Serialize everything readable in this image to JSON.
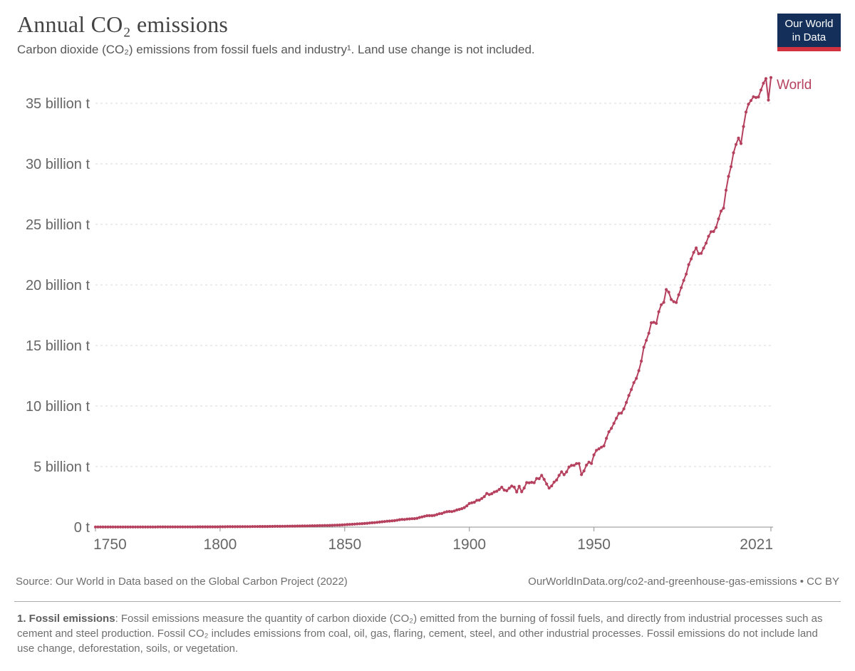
{
  "header": {
    "title": "Annual CO₂ emissions",
    "subtitle": "Carbon dioxide (CO₂) emissions from fossil fuels and industry¹. Land use change is not included."
  },
  "logo": {
    "line1": "Our World",
    "line2": "in Data"
  },
  "colors": {
    "line": "#b5415e",
    "grid": "#d9d9d9",
    "axis": "#8f8f8f",
    "tick_label": "#666666",
    "logo_navy": "#14305a",
    "logo_red": "#d0333f"
  },
  "chart_data": {
    "type": "line",
    "title": "Annual CO₂ emissions",
    "xlabel": "",
    "ylabel": "",
    "unit": "billion t",
    "xlim": [
      1750,
      2021
    ],
    "ylim": [
      0,
      37.5
    ],
    "x_ticks": [
      1750,
      1800,
      1850,
      1900,
      1950,
      2021
    ],
    "y_ticks": [
      0,
      5,
      10,
      15,
      20,
      25,
      30,
      35
    ],
    "y_tick_labels": [
      "0 t",
      "5 billion t",
      "10 billion t",
      "15 billion t",
      "20 billion t",
      "25 billion t",
      "30 billion t",
      "35 billion t"
    ],
    "grid": "horizontal-dashed",
    "legend_position": "end-of-line",
    "series": [
      {
        "name": "World",
        "color": "#b5415e",
        "data": [
          [
            1750,
            0.009
          ],
          [
            1751,
            0.009
          ],
          [
            1752,
            0.009
          ],
          [
            1753,
            0.01
          ],
          [
            1754,
            0.01
          ],
          [
            1755,
            0.01
          ],
          [
            1756,
            0.01
          ],
          [
            1757,
            0.01
          ],
          [
            1758,
            0.01
          ],
          [
            1759,
            0.011
          ],
          [
            1760,
            0.011
          ],
          [
            1761,
            0.011
          ],
          [
            1762,
            0.011
          ],
          [
            1763,
            0.012
          ],
          [
            1764,
            0.012
          ],
          [
            1765,
            0.012
          ],
          [
            1766,
            0.012
          ],
          [
            1767,
            0.013
          ],
          [
            1768,
            0.013
          ],
          [
            1769,
            0.013
          ],
          [
            1770,
            0.013
          ],
          [
            1771,
            0.014
          ],
          [
            1772,
            0.014
          ],
          [
            1773,
            0.014
          ],
          [
            1774,
            0.014
          ],
          [
            1775,
            0.015
          ],
          [
            1776,
            0.015
          ],
          [
            1777,
            0.015
          ],
          [
            1778,
            0.016
          ],
          [
            1779,
            0.016
          ],
          [
            1780,
            0.016
          ],
          [
            1781,
            0.017
          ],
          [
            1782,
            0.017
          ],
          [
            1783,
            0.017
          ],
          [
            1784,
            0.018
          ],
          [
            1785,
            0.018
          ],
          [
            1786,
            0.018
          ],
          [
            1787,
            0.019
          ],
          [
            1788,
            0.019
          ],
          [
            1789,
            0.02
          ],
          [
            1790,
            0.02
          ],
          [
            1791,
            0.021
          ],
          [
            1792,
            0.021
          ],
          [
            1793,
            0.022
          ],
          [
            1794,
            0.022
          ],
          [
            1795,
            0.023
          ],
          [
            1796,
            0.024
          ],
          [
            1797,
            0.024
          ],
          [
            1798,
            0.025
          ],
          [
            1799,
            0.026
          ],
          [
            1800,
            0.03
          ],
          [
            1801,
            0.031
          ],
          [
            1802,
            0.032
          ],
          [
            1803,
            0.033
          ],
          [
            1804,
            0.034
          ],
          [
            1805,
            0.035
          ],
          [
            1806,
            0.036
          ],
          [
            1807,
            0.037
          ],
          [
            1808,
            0.038
          ],
          [
            1809,
            0.039
          ],
          [
            1810,
            0.04
          ],
          [
            1811,
            0.042
          ],
          [
            1812,
            0.043
          ],
          [
            1813,
            0.045
          ],
          [
            1814,
            0.046
          ],
          [
            1815,
            0.048
          ],
          [
            1816,
            0.05
          ],
          [
            1817,
            0.052
          ],
          [
            1818,
            0.053
          ],
          [
            1819,
            0.055
          ],
          [
            1820,
            0.057
          ],
          [
            1821,
            0.059
          ],
          [
            1822,
            0.062
          ],
          [
            1823,
            0.064
          ],
          [
            1824,
            0.066
          ],
          [
            1825,
            0.069
          ],
          [
            1826,
            0.071
          ],
          [
            1827,
            0.074
          ],
          [
            1828,
            0.077
          ],
          [
            1829,
            0.08
          ],
          [
            1830,
            0.083
          ],
          [
            1831,
            0.086
          ],
          [
            1832,
            0.09
          ],
          [
            1833,
            0.093
          ],
          [
            1834,
            0.097
          ],
          [
            1835,
            0.101
          ],
          [
            1836,
            0.105
          ],
          [
            1837,
            0.109
          ],
          [
            1838,
            0.113
          ],
          [
            1839,
            0.118
          ],
          [
            1840,
            0.123
          ],
          [
            1841,
            0.128
          ],
          [
            1842,
            0.133
          ],
          [
            1843,
            0.138
          ],
          [
            1844,
            0.144
          ],
          [
            1845,
            0.15
          ],
          [
            1846,
            0.156
          ],
          [
            1847,
            0.163
          ],
          [
            1848,
            0.173
          ],
          [
            1849,
            0.184
          ],
          [
            1850,
            0.197
          ],
          [
            1851,
            0.209
          ],
          [
            1852,
            0.222
          ],
          [
            1853,
            0.235
          ],
          [
            1854,
            0.25
          ],
          [
            1855,
            0.263
          ],
          [
            1856,
            0.277
          ],
          [
            1857,
            0.289
          ],
          [
            1858,
            0.3
          ],
          [
            1859,
            0.318
          ],
          [
            1860,
            0.34
          ],
          [
            1861,
            0.358
          ],
          [
            1862,
            0.372
          ],
          [
            1863,
            0.394
          ],
          [
            1864,
            0.418
          ],
          [
            1865,
            0.439
          ],
          [
            1866,
            0.461
          ],
          [
            1867,
            0.488
          ],
          [
            1868,
            0.5
          ],
          [
            1869,
            0.516
          ],
          [
            1870,
            0.533
          ],
          [
            1871,
            0.572
          ],
          [
            1872,
            0.614
          ],
          [
            1873,
            0.638
          ],
          [
            1874,
            0.632
          ],
          [
            1875,
            0.662
          ],
          [
            1876,
            0.678
          ],
          [
            1877,
            0.692
          ],
          [
            1878,
            0.702
          ],
          [
            1879,
            0.731
          ],
          [
            1880,
            0.792
          ],
          [
            1881,
            0.842
          ],
          [
            1882,
            0.895
          ],
          [
            1883,
            0.943
          ],
          [
            1884,
            0.946
          ],
          [
            1885,
            0.949
          ],
          [
            1886,
            0.972
          ],
          [
            1887,
            1.034
          ],
          [
            1888,
            1.104
          ],
          [
            1889,
            1.122
          ],
          [
            1890,
            1.219
          ],
          [
            1891,
            1.268
          ],
          [
            1892,
            1.292
          ],
          [
            1893,
            1.284
          ],
          [
            1894,
            1.336
          ],
          [
            1895,
            1.416
          ],
          [
            1896,
            1.463
          ],
          [
            1897,
            1.523
          ],
          [
            1898,
            1.609
          ],
          [
            1899,
            1.751
          ],
          [
            1900,
            1.952
          ],
          [
            1901,
            2.013
          ],
          [
            1902,
            2.055
          ],
          [
            1903,
            2.21
          ],
          [
            1904,
            2.232
          ],
          [
            1905,
            2.362
          ],
          [
            1906,
            2.516
          ],
          [
            1907,
            2.785
          ],
          [
            1908,
            2.691
          ],
          [
            1909,
            2.76
          ],
          [
            1910,
            2.9
          ],
          [
            1911,
            2.962
          ],
          [
            1912,
            3.113
          ],
          [
            1913,
            3.296
          ],
          [
            1914,
            3.058
          ],
          [
            1915,
            3.007
          ],
          [
            1916,
            3.217
          ],
          [
            1917,
            3.389
          ],
          [
            1918,
            3.302
          ],
          [
            1919,
            2.905
          ],
          [
            1920,
            3.372
          ],
          [
            1921,
            2.918
          ],
          [
            1922,
            3.229
          ],
          [
            1923,
            3.676
          ],
          [
            1924,
            3.658
          ],
          [
            1925,
            3.702
          ],
          [
            1926,
            3.663
          ],
          [
            1927,
            4.018
          ],
          [
            1928,
            4.001
          ],
          [
            1929,
            4.276
          ],
          [
            1930,
            3.94
          ],
          [
            1931,
            3.56
          ],
          [
            1932,
            3.229
          ],
          [
            1933,
            3.402
          ],
          [
            1934,
            3.718
          ],
          [
            1935,
            3.889
          ],
          [
            1936,
            4.27
          ],
          [
            1937,
            4.565
          ],
          [
            1938,
            4.332
          ],
          [
            1939,
            4.559
          ],
          [
            1940,
            4.966
          ],
          [
            1941,
            5.096
          ],
          [
            1942,
            5.098
          ],
          [
            1943,
            5.247
          ],
          [
            1944,
            5.254
          ],
          [
            1945,
            4.336
          ],
          [
            1946,
            4.643
          ],
          [
            1947,
            5.118
          ],
          [
            1948,
            5.364
          ],
          [
            1949,
            5.253
          ],
          [
            1950,
            5.966
          ],
          [
            1951,
            6.34
          ],
          [
            1952,
            6.463
          ],
          [
            1953,
            6.601
          ],
          [
            1954,
            6.703
          ],
          [
            1955,
            7.327
          ],
          [
            1956,
            7.868
          ],
          [
            1957,
            8.156
          ],
          [
            1958,
            8.571
          ],
          [
            1959,
            8.99
          ],
          [
            1960,
            9.388
          ],
          [
            1961,
            9.419
          ],
          [
            1962,
            9.762
          ],
          [
            1963,
            10.296
          ],
          [
            1964,
            10.87
          ],
          [
            1965,
            11.357
          ],
          [
            1966,
            11.931
          ],
          [
            1967,
            12.281
          ],
          [
            1968,
            12.919
          ],
          [
            1969,
            13.706
          ],
          [
            1970,
            14.852
          ],
          [
            1971,
            15.421
          ],
          [
            1972,
            16.01
          ],
          [
            1973,
            16.878
          ],
          [
            1974,
            16.913
          ],
          [
            1975,
            16.821
          ],
          [
            1976,
            17.782
          ],
          [
            1977,
            18.363
          ],
          [
            1978,
            18.56
          ],
          [
            1979,
            19.617
          ],
          [
            1980,
            19.4
          ],
          [
            1981,
            18.794
          ],
          [
            1982,
            18.62
          ],
          [
            1983,
            18.548
          ],
          [
            1984,
            19.184
          ],
          [
            1985,
            19.776
          ],
          [
            1986,
            20.378
          ],
          [
            1987,
            20.894
          ],
          [
            1988,
            21.678
          ],
          [
            1989,
            22.15
          ],
          [
            1990,
            22.683
          ],
          [
            1991,
            23.051
          ],
          [
            1992,
            22.583
          ],
          [
            1993,
            22.605
          ],
          [
            1994,
            23.039
          ],
          [
            1995,
            23.455
          ],
          [
            1996,
            24.015
          ],
          [
            1997,
            24.396
          ],
          [
            1998,
            24.413
          ],
          [
            1999,
            24.749
          ],
          [
            2000,
            25.453
          ],
          [
            2001,
            26.096
          ],
          [
            2002,
            26.343
          ],
          [
            2003,
            27.822
          ],
          [
            2004,
            28.966
          ],
          [
            2005,
            29.764
          ],
          [
            2006,
            30.912
          ],
          [
            2007,
            31.6
          ],
          [
            2008,
            32.131
          ],
          [
            2009,
            31.678
          ],
          [
            2010,
            33.08
          ],
          [
            2011,
            34.278
          ],
          [
            2012,
            34.931
          ],
          [
            2013,
            35.221
          ],
          [
            2014,
            35.541
          ],
          [
            2015,
            35.474
          ],
          [
            2016,
            35.524
          ],
          [
            2017,
            36.096
          ],
          [
            2018,
            36.661
          ],
          [
            2019,
            37.04
          ],
          [
            2020,
            35.264
          ],
          [
            2021,
            37.124
          ]
        ]
      }
    ]
  },
  "footer": {
    "source": "Source: Our World in Data based on the Global Carbon Project (2022)",
    "link": "OurWorldInData.org/co2-and-greenhouse-gas-emissions • CC BY"
  },
  "footnote": {
    "label": "1. Fossil emissions",
    "text": ": Fossil emissions measure the quantity of carbon dioxide (CO₂) emitted from the burning of fossil fuels, and directly from industrial processes such as cement and steel production. Fossil CO₂ includes emissions from coal, oil, gas, flaring, cement, steel, and other industrial processes. Fossil emissions do not include land use change, deforestation, soils, or vegetation."
  }
}
